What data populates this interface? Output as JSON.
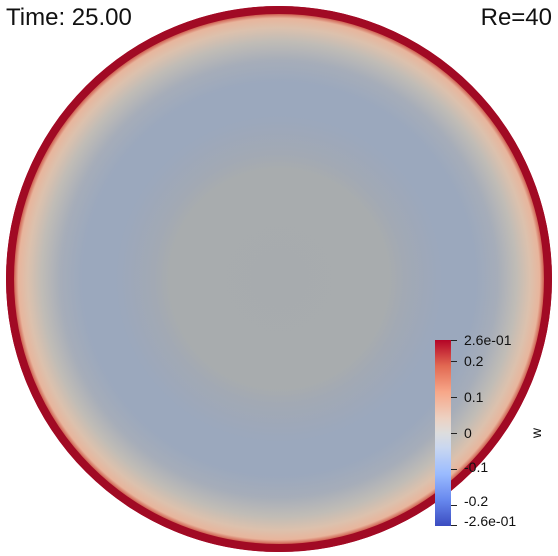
{
  "time_label": "Time: 25.00",
  "re_label": "Re=40",
  "colorbar": {
    "title": "w",
    "colormap": "coolwarm",
    "range": [
      -0.26,
      0.26
    ],
    "max_label": "2.6e-01",
    "min_label": "-2.6e-01",
    "ticks": [
      {
        "value": 0.2,
        "label": "0.2"
      },
      {
        "value": 0.1,
        "label": "0.1"
      },
      {
        "value": 0,
        "label": "0"
      },
      {
        "value": -0.1,
        "label": "-0.1"
      },
      {
        "value": -0.2,
        "label": "-0.2"
      }
    ]
  },
  "colors": {
    "wall_red": "#b40426",
    "interior_blue_gray": "#9aa8be",
    "core_gray": "#a9acad",
    "ring_peach": "#e7c2ab"
  }
}
